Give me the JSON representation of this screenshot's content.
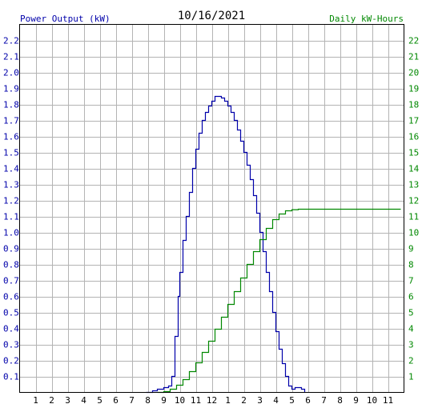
{
  "chart_data": {
    "type": "line",
    "title": "10/16/2021",
    "left_axis_label": "Power Output (kW)",
    "right_axis_label": "Daily kW-Hours",
    "x_ticks": [
      "1",
      "2",
      "3",
      "4",
      "5",
      "6",
      "7",
      "8",
      "9",
      "10",
      "11",
      "12",
      "1",
      "2",
      "3",
      "4",
      "5",
      "6",
      "7",
      "8",
      "9",
      "10",
      "11"
    ],
    "x_range": [
      0,
      24
    ],
    "y_left_range": [
      0,
      2.3
    ],
    "y_left_ticks": [
      "0.1",
      "0.2",
      "0.3",
      "0.4",
      "0.5",
      "0.6",
      "0.7",
      "0.8",
      "0.9",
      "1.0",
      "1.1",
      "1.2",
      "1.3",
      "1.4",
      "1.5",
      "1.6",
      "1.7",
      "1.8",
      "1.9",
      "2.0",
      "2.1",
      "2.2"
    ],
    "y_right_range": [
      0,
      23
    ],
    "y_right_ticks": [
      "1",
      "2",
      "3",
      "4",
      "5",
      "6",
      "7",
      "8",
      "9",
      "10",
      "11",
      "12",
      "13",
      "14",
      "15",
      "16",
      "17",
      "18",
      "19",
      "20",
      "21",
      "22"
    ],
    "grid": true,
    "colors": {
      "power": "#0000aa",
      "energy": "#008800",
      "grid": "#b4b4b4",
      "axis": "#000000"
    },
    "series": [
      {
        "axis": "left",
        "color": "#0000aa",
        "x": [
          7.9,
          8.3,
          8.6,
          9.0,
          9.3,
          9.5,
          9.7,
          9.9,
          10.0,
          10.2,
          10.4,
          10.6,
          10.8,
          11.0,
          11.2,
          11.4,
          11.6,
          11.8,
          12.0,
          12.2,
          12.4,
          12.6,
          12.8,
          13.0,
          13.2,
          13.4,
          13.6,
          13.8,
          14.0,
          14.2,
          14.4,
          14.6,
          14.8,
          15.0,
          15.2,
          15.4,
          15.6,
          15.8,
          16.0,
          16.2,
          16.4,
          16.6,
          16.8,
          17.0,
          17.2,
          17.4,
          17.6,
          17.8,
          18.0,
          18.2,
          18.6,
          19.0,
          19.6
        ],
        "y": [
          0.0,
          0.01,
          0.02,
          0.03,
          0.04,
          0.1,
          0.35,
          0.6,
          0.75,
          0.95,
          1.1,
          1.25,
          1.4,
          1.52,
          1.62,
          1.7,
          1.75,
          1.79,
          1.82,
          1.85,
          1.85,
          1.84,
          1.82,
          1.79,
          1.75,
          1.7,
          1.64,
          1.57,
          1.5,
          1.42,
          1.33,
          1.23,
          1.12,
          1.0,
          0.88,
          0.75,
          0.63,
          0.5,
          0.38,
          0.27,
          0.18,
          0.1,
          0.04,
          0.02,
          0.03,
          0.03,
          0.02,
          0.0,
          null,
          null,
          null,
          null,
          null
        ]
      },
      {
        "axis": "right",
        "color": "#008800",
        "x": [
          8.6,
          9.0,
          9.4,
          9.8,
          10.2,
          10.6,
          11.0,
          11.4,
          11.8,
          12.2,
          12.6,
          13.0,
          13.4,
          13.8,
          14.2,
          14.6,
          15.0,
          15.4,
          15.8,
          16.2,
          16.6,
          17.0,
          17.4,
          17.8,
          18.2,
          18.6,
          19.0,
          20.0,
          21.0,
          22.0,
          23.0,
          23.8
        ],
        "y": [
          0.0,
          0.05,
          0.2,
          0.45,
          0.8,
          1.3,
          1.85,
          2.5,
          3.2,
          3.95,
          4.7,
          5.5,
          6.3,
          7.15,
          8.0,
          8.8,
          9.55,
          10.25,
          10.8,
          11.15,
          11.35,
          11.42,
          11.45,
          11.45,
          11.45,
          11.45,
          11.45,
          11.45,
          11.45,
          11.45,
          11.45,
          11.45
        ]
      }
    ]
  }
}
